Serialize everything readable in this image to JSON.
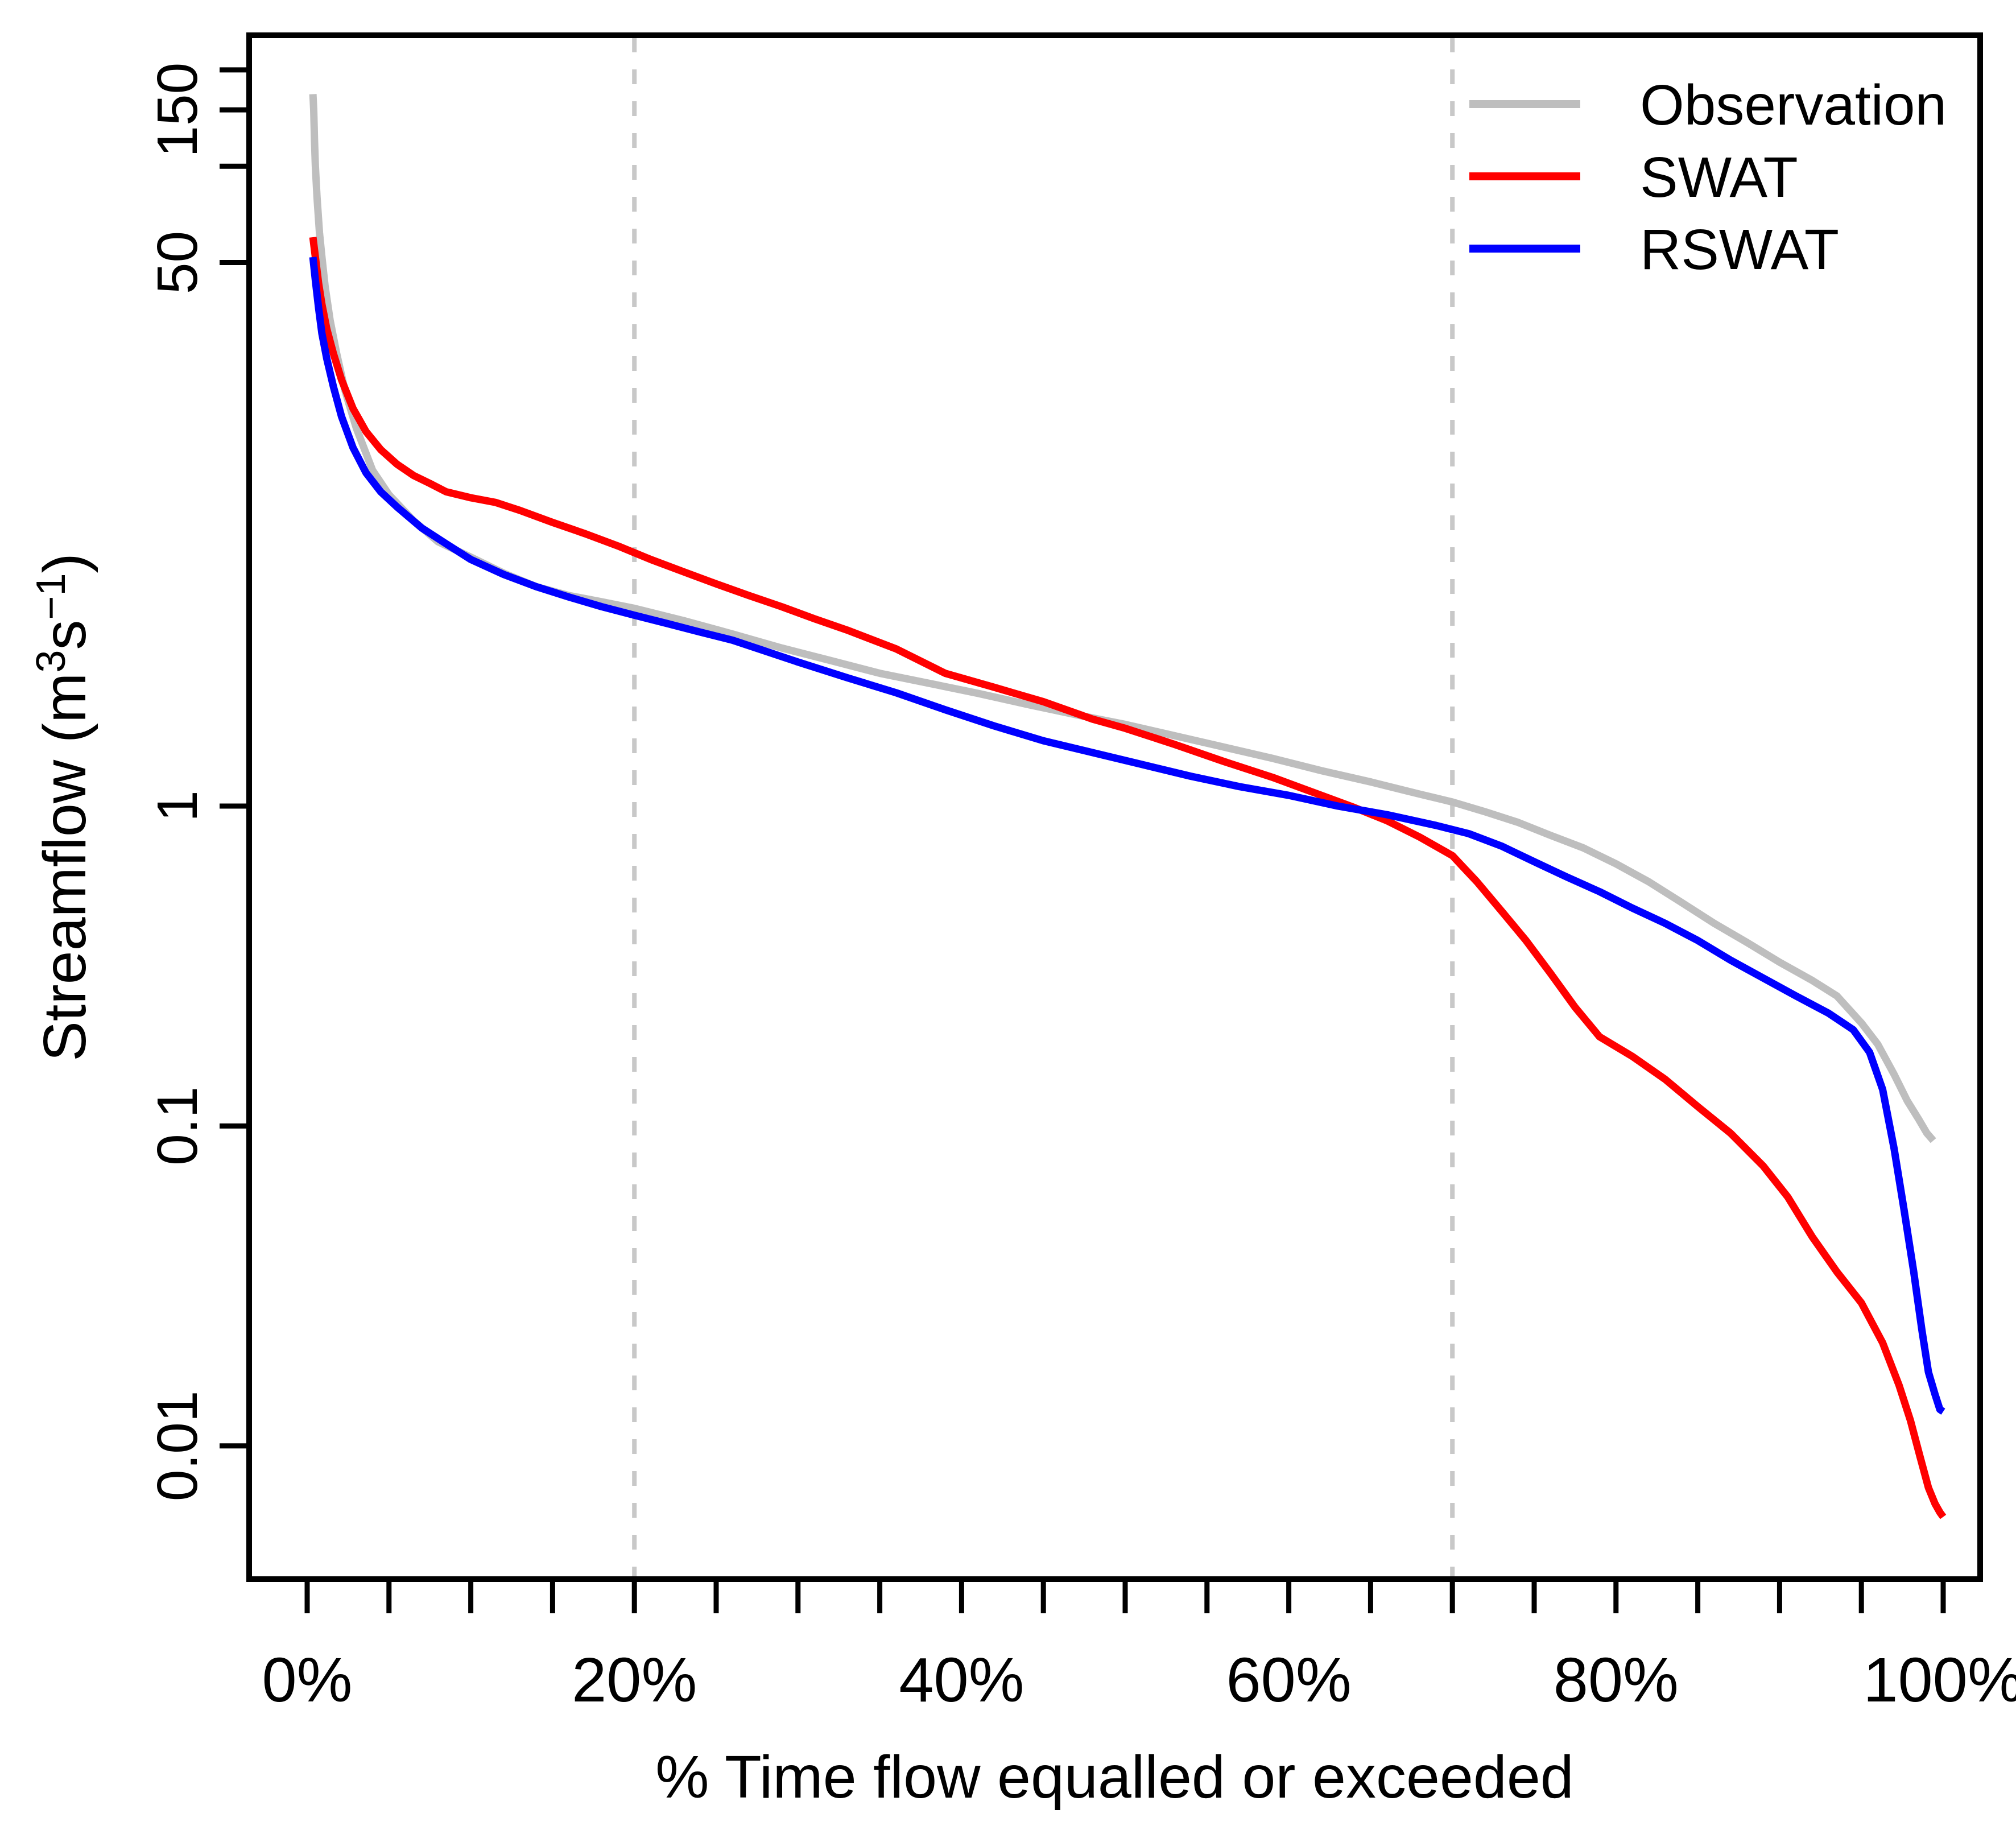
{
  "chart_data": {
    "type": "line",
    "title": "",
    "xlabel": "% Time flow equalled or exceeded",
    "ylabel_text": "Streamflow (m3 s-1)",
    "ylabel_parts": {
      "prefix": "Streamflow  (m",
      "sup1": "3",
      "mid": "s",
      "sup2": "−1",
      "suffix": ")"
    },
    "x_axis": {
      "range": [
        0,
        100
      ],
      "major_tick_labels": [
        "0%",
        "20%",
        "40%",
        "60%",
        "80%",
        "100%"
      ],
      "major_tick_values": [
        0,
        20,
        40,
        60,
        80,
        100
      ],
      "minor_tick_step": 5
    },
    "y_axis": {
      "scale": "log",
      "unit": "m3/s",
      "ticks": [
        {
          "value": 200,
          "label": ""
        },
        {
          "value": 150,
          "label": "150"
        },
        {
          "value": 100,
          "label": ""
        },
        {
          "value": 50,
          "label": "50"
        },
        {
          "value": 1,
          "label": "1"
        },
        {
          "value": 0.1,
          "label": "0.1"
        },
        {
          "value": 0.01,
          "label": "0.01"
        }
      ],
      "approx_range": [
        0.005,
        230
      ]
    },
    "gridlines": {
      "x_percent": [
        20,
        70
      ],
      "style": "dotted",
      "color": "#c8c8c8"
    },
    "legend": {
      "position": "top-right",
      "entries": [
        {
          "label": "Observation",
          "color": "#bebebe"
        },
        {
          "label": "SWAT",
          "color": "#ff0000"
        },
        {
          "label": "RSWAT",
          "color": "#0000ff"
        }
      ]
    },
    "series": [
      {
        "name": "Observation",
        "color": "#bebebe",
        "points": [
          [
            0.35,
            168
          ],
          [
            0.4,
            150
          ],
          [
            0.45,
            120
          ],
          [
            0.5,
            100
          ],
          [
            0.6,
            80
          ],
          [
            0.75,
            62
          ],
          [
            0.9,
            52
          ],
          [
            1.1,
            42
          ],
          [
            1.4,
            33
          ],
          [
            1.8,
            26
          ],
          [
            2.3,
            20
          ],
          [
            3,
            15.2
          ],
          [
            4,
            11.2
          ],
          [
            5,
            9.4
          ],
          [
            6.5,
            7.8
          ],
          [
            8,
            6.7
          ],
          [
            10,
            6.0
          ],
          [
            12,
            5.35
          ],
          [
            14,
            4.85
          ],
          [
            16,
            4.55
          ],
          [
            18,
            4.35
          ],
          [
            20,
            4.15
          ],
          [
            23,
            3.8
          ],
          [
            26,
            3.45
          ],
          [
            29,
            3.12
          ],
          [
            32,
            2.85
          ],
          [
            35,
            2.6
          ],
          [
            38,
            2.42
          ],
          [
            41,
            2.25
          ],
          [
            44,
            2.08
          ],
          [
            47,
            1.93
          ],
          [
            50,
            1.8
          ],
          [
            53,
            1.66
          ],
          [
            56,
            1.53
          ],
          [
            59,
            1.41
          ],
          [
            62,
            1.29
          ],
          [
            65,
            1.19
          ],
          [
            68,
            1.09
          ],
          [
            70,
            1.03
          ],
          [
            72,
            0.96
          ],
          [
            74,
            0.89
          ],
          [
            76,
            0.81
          ],
          [
            78,
            0.74
          ],
          [
            80,
            0.66
          ],
          [
            82,
            0.58
          ],
          [
            84,
            0.5
          ],
          [
            86,
            0.43
          ],
          [
            88,
            0.375
          ],
          [
            90,
            0.325
          ],
          [
            92,
            0.285
          ],
          [
            93.5,
            0.255
          ],
          [
            95,
            0.21
          ],
          [
            96,
            0.18
          ],
          [
            97,
            0.145
          ],
          [
            97.8,
            0.12
          ],
          [
            98.5,
            0.105
          ],
          [
            99,
            0.095
          ],
          [
            99.4,
            0.09
          ]
        ]
      },
      {
        "name": "SWAT",
        "color": "#ff0000",
        "points": [
          [
            0.35,
            60
          ],
          [
            0.5,
            52
          ],
          [
            0.7,
            43
          ],
          [
            0.9,
            37
          ],
          [
            1.2,
            31
          ],
          [
            1.6,
            26
          ],
          [
            2.1,
            21.5
          ],
          [
            2.8,
            17.5
          ],
          [
            3.6,
            14.8
          ],
          [
            4.5,
            13
          ],
          [
            5.5,
            11.7
          ],
          [
            6.5,
            10.8
          ],
          [
            7.5,
            10.2
          ],
          [
            8.5,
            9.6
          ],
          [
            10,
            9.2
          ],
          [
            11.5,
            8.9
          ],
          [
            13,
            8.4
          ],
          [
            15,
            7.7
          ],
          [
            17,
            7.1
          ],
          [
            19,
            6.5
          ],
          [
            21,
            5.9
          ],
          [
            23,
            5.4
          ],
          [
            25,
            4.95
          ],
          [
            27,
            4.55
          ],
          [
            29,
            4.2
          ],
          [
            31,
            3.85
          ],
          [
            33,
            3.55
          ],
          [
            36,
            3.1
          ],
          [
            39,
            2.6
          ],
          [
            42,
            2.35
          ],
          [
            45,
            2.12
          ],
          [
            48,
            1.87
          ],
          [
            50,
            1.75
          ],
          [
            53,
            1.56
          ],
          [
            56,
            1.38
          ],
          [
            59,
            1.23
          ],
          [
            62,
            1.08
          ],
          [
            64,
            0.99
          ],
          [
            66,
            0.9
          ],
          [
            68,
            0.8
          ],
          [
            70,
            0.7
          ],
          [
            71.5,
            0.58
          ],
          [
            73,
            0.47
          ],
          [
            74.5,
            0.38
          ],
          [
            76,
            0.3
          ],
          [
            77.5,
            0.235
          ],
          [
            79,
            0.19
          ],
          [
            81,
            0.165
          ],
          [
            83,
            0.14
          ],
          [
            85,
            0.115
          ],
          [
            87,
            0.095
          ],
          [
            89,
            0.075
          ],
          [
            90.5,
            0.06
          ],
          [
            92,
            0.045
          ],
          [
            93.5,
            0.035
          ],
          [
            95,
            0.028
          ],
          [
            96.3,
            0.021
          ],
          [
            97.3,
            0.0155
          ],
          [
            98,
            0.012
          ],
          [
            98.6,
            0.0092
          ],
          [
            99.1,
            0.0074
          ],
          [
            99.5,
            0.0066
          ],
          [
            99.8,
            0.0062
          ],
          [
            100,
            0.006
          ]
        ]
      },
      {
        "name": "RSWAT",
        "color": "#0000ff",
        "points": [
          [
            0.35,
            52
          ],
          [
            0.5,
            44
          ],
          [
            0.7,
            36
          ],
          [
            0.9,
            30
          ],
          [
            1.2,
            25
          ],
          [
            1.6,
            20.5
          ],
          [
            2.1,
            16.5
          ],
          [
            2.8,
            13.2
          ],
          [
            3.6,
            11
          ],
          [
            4.5,
            9.6
          ],
          [
            5.5,
            8.6
          ],
          [
            7,
            7.4
          ],
          [
            8.5,
            6.6
          ],
          [
            10,
            5.9
          ],
          [
            12,
            5.3
          ],
          [
            14,
            4.85
          ],
          [
            16,
            4.5
          ],
          [
            18,
            4.2
          ],
          [
            20,
            3.95
          ],
          [
            22,
            3.72
          ],
          [
            24,
            3.5
          ],
          [
            26,
            3.3
          ],
          [
            28,
            3.05
          ],
          [
            30,
            2.82
          ],
          [
            33,
            2.52
          ],
          [
            36,
            2.26
          ],
          [
            39,
            2.0
          ],
          [
            42,
            1.78
          ],
          [
            45,
            1.6
          ],
          [
            48,
            1.47
          ],
          [
            51,
            1.35
          ],
          [
            54,
            1.24
          ],
          [
            57,
            1.15
          ],
          [
            60,
            1.08
          ],
          [
            63,
            1.0
          ],
          [
            66,
            0.94
          ],
          [
            69,
            0.87
          ],
          [
            71,
            0.82
          ],
          [
            73,
            0.75
          ],
          [
            75,
            0.67
          ],
          [
            77,
            0.6
          ],
          [
            79,
            0.54
          ],
          [
            81,
            0.48
          ],
          [
            83,
            0.43
          ],
          [
            85,
            0.38
          ],
          [
            87,
            0.33
          ],
          [
            89,
            0.29
          ],
          [
            91,
            0.255
          ],
          [
            93,
            0.225
          ],
          [
            94.5,
            0.2
          ],
          [
            95.5,
            0.17
          ],
          [
            96.3,
            0.13
          ],
          [
            97,
            0.085
          ],
          [
            97.6,
            0.055
          ],
          [
            98.2,
            0.035
          ],
          [
            98.7,
            0.023
          ],
          [
            99.1,
            0.017
          ],
          [
            99.5,
            0.0145
          ],
          [
            99.8,
            0.013
          ],
          [
            100,
            0.0128
          ]
        ]
      }
    ]
  }
}
